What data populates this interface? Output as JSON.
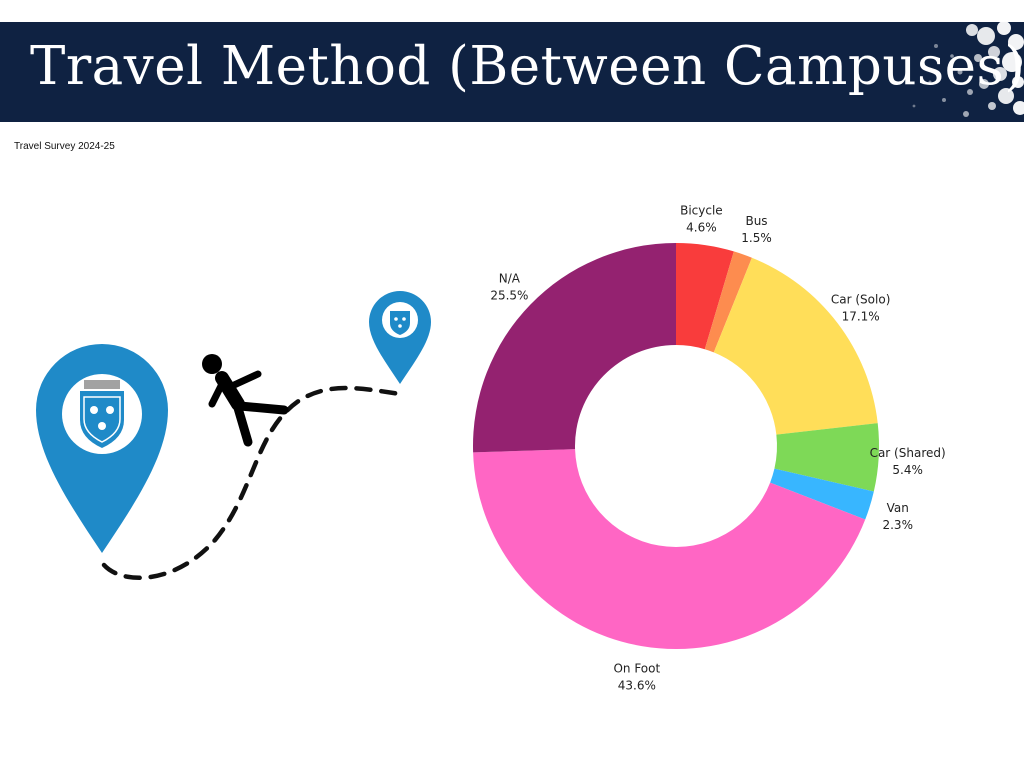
{
  "header": {
    "title": "Travel Method (Between Campuses)",
    "background_color": "#0f2242"
  },
  "subtitle": "Travel Survey 2024-25",
  "illustration": {
    "pin_color": "#1f8ac8",
    "path_style": "dashed",
    "icons": [
      "map-pin-icon",
      "walking-person-icon",
      "crest-icon"
    ]
  },
  "chart_data": {
    "type": "pie",
    "style": "donut",
    "slices": [
      {
        "label": "Bicycle",
        "value": 4.6,
        "value_label": "4.6%",
        "color": "#f93c3c"
      },
      {
        "label": "Bus",
        "value": 1.5,
        "value_label": "1.5%",
        "color": "#fd8c4f"
      },
      {
        "label": "Car (Solo)",
        "value": 17.1,
        "value_label": "17.1%",
        "color": "#ffde59"
      },
      {
        "label": "Car (Shared)",
        "value": 5.4,
        "value_label": "5.4%",
        "color": "#7ed957"
      },
      {
        "label": "Van",
        "value": 2.3,
        "value_label": "2.3%",
        "color": "#38b6ff"
      },
      {
        "label": "On Foot",
        "value": 43.6,
        "value_label": "43.6%",
        "color": "#ff66c4"
      },
      {
        "label": "N/A",
        "value": 25.5,
        "value_label": "25.5%",
        "color": "#942270"
      }
    ],
    "start_angle_deg": 0,
    "direction": "clockwise"
  }
}
